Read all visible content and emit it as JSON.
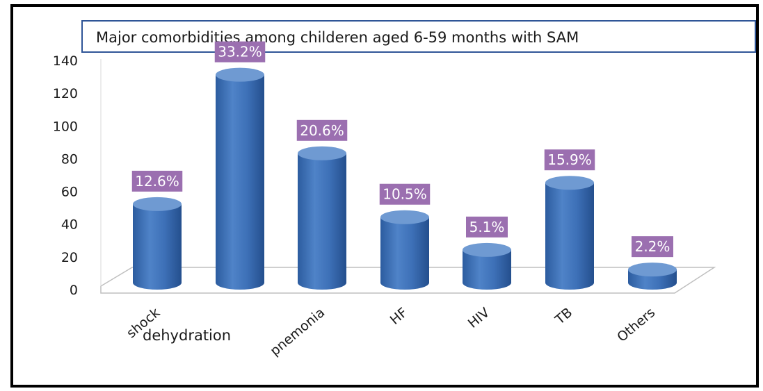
{
  "chart_data": {
    "type": "bar",
    "title": "Major comorbidities  among childeren aged 6-59  months with SAM",
    "categories": [
      "shock",
      "dehydration",
      "pnemonia",
      "HF",
      "HIV",
      "TB",
      "Others"
    ],
    "values": [
      48,
      127,
      79,
      40,
      20,
      61,
      8
    ],
    "data_labels": [
      "12.6%",
      "33.2%",
      "20.6%",
      "10.5%",
      "5.1%",
      "15.9%",
      "2.2%"
    ],
    "yticks": [
      "0",
      "20",
      "40",
      "60",
      "80",
      "100",
      "120",
      "140"
    ],
    "ylim": [
      0,
      140
    ],
    "grid": false,
    "legend": "none",
    "xlabel": "",
    "ylabel": "",
    "colors": {
      "bar_side": "#3b6db5",
      "bar_top": "#6f9ad2",
      "label_bg": "#9b6fb0",
      "label_text": "#ffffff",
      "title_border": "#2f5597",
      "frame": "#000000"
    }
  }
}
